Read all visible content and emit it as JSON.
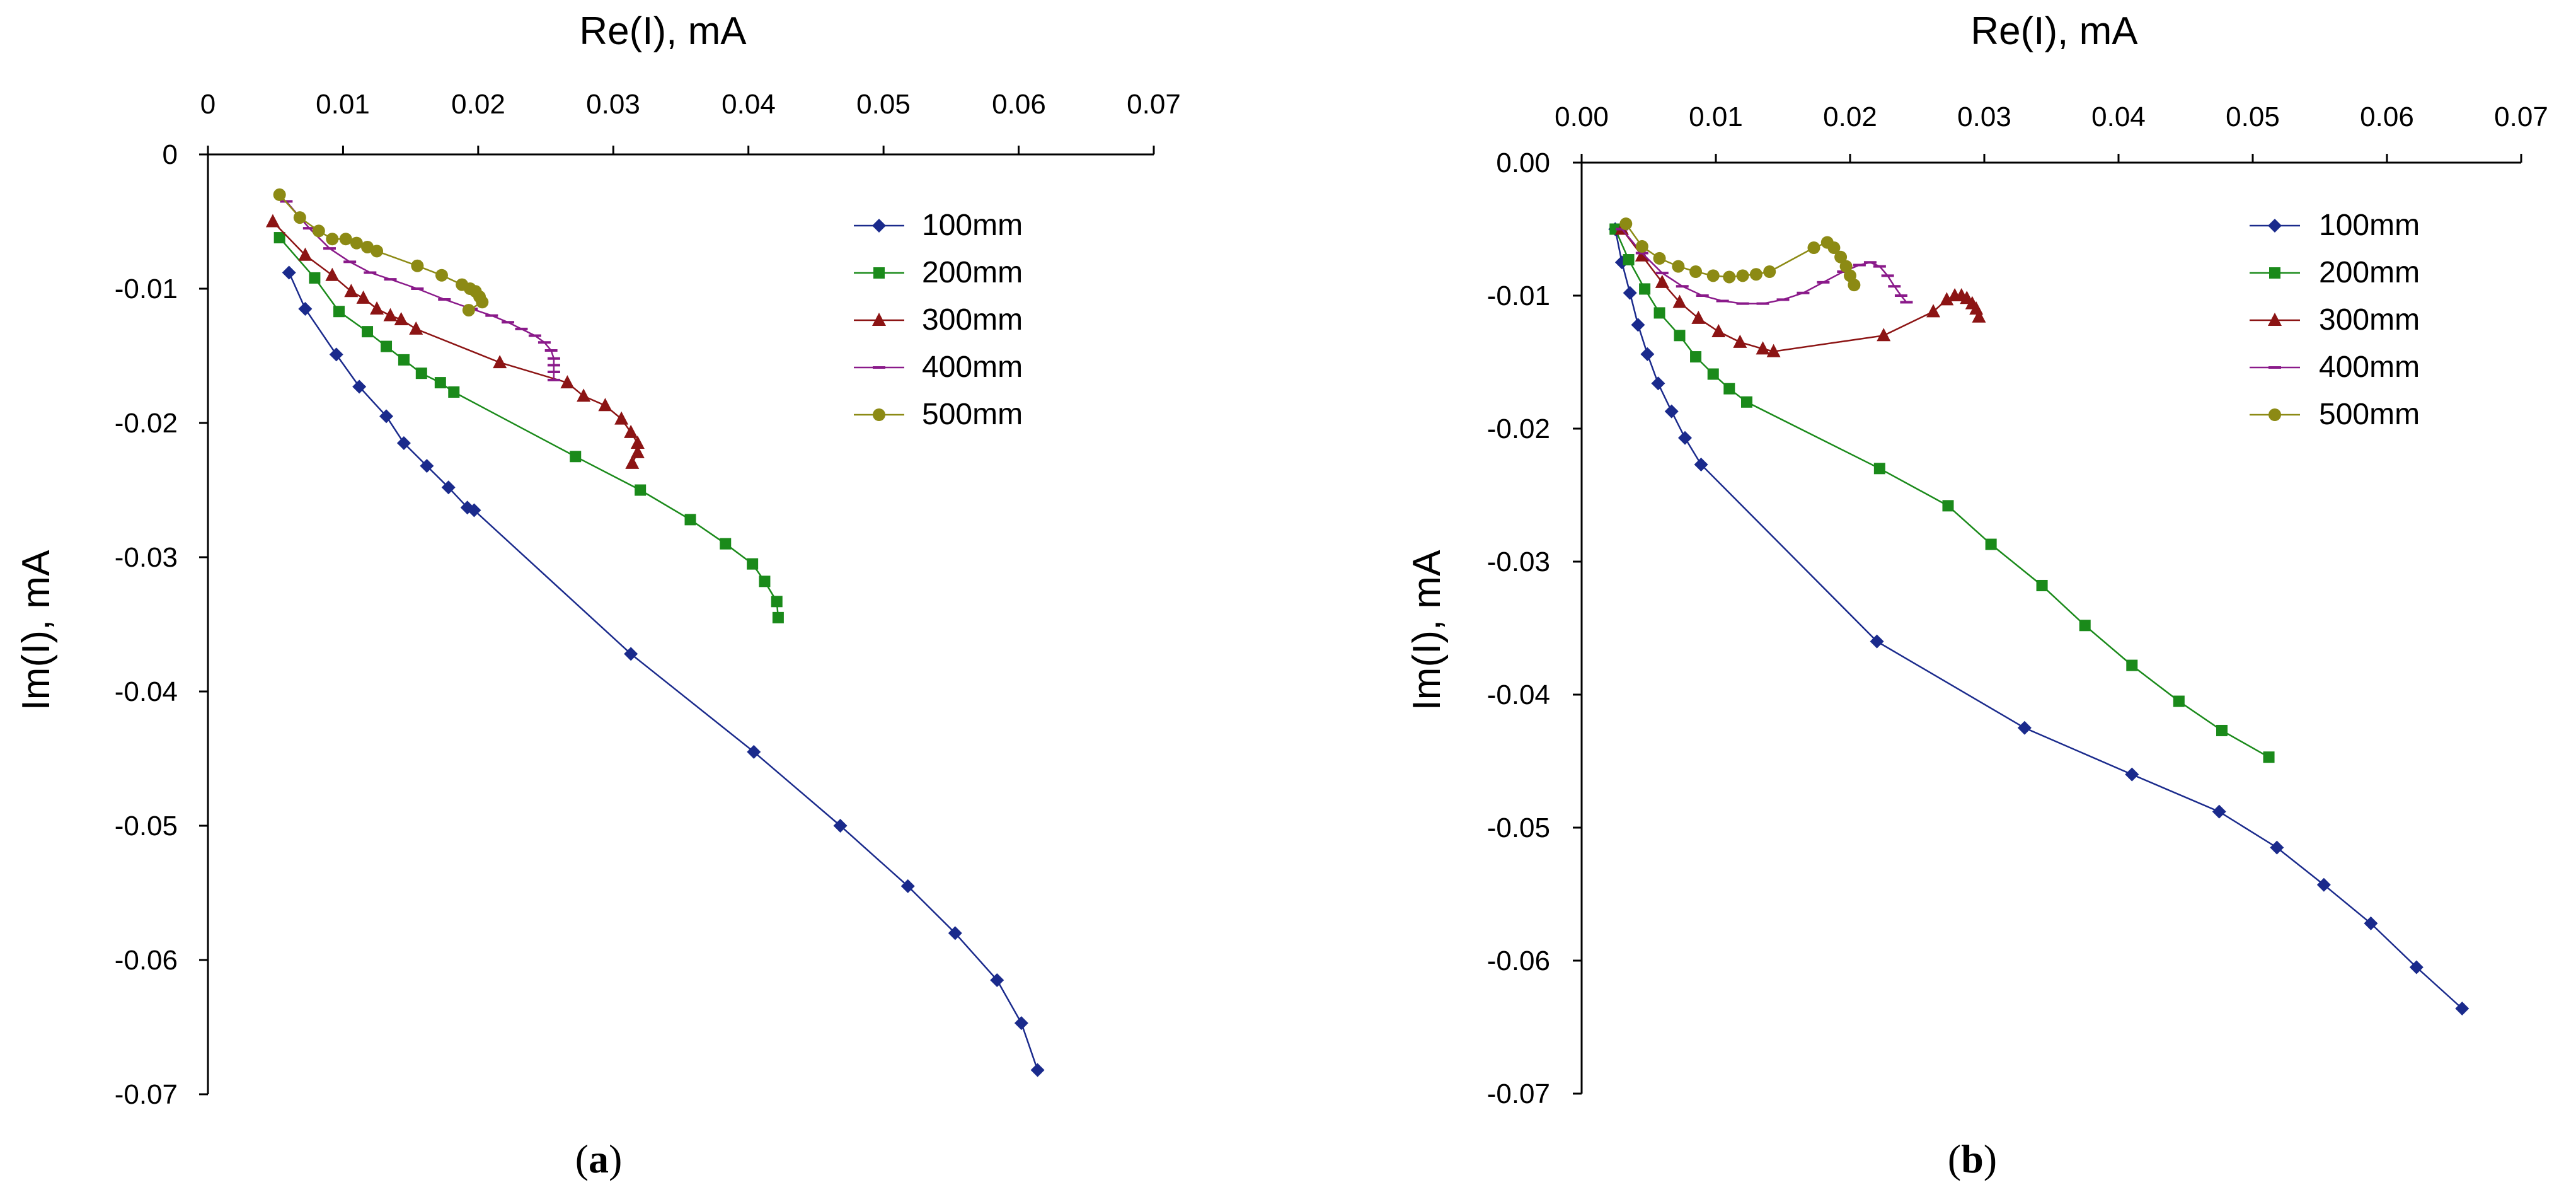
{
  "colors": {
    "100mm": "#1a2a8c",
    "200mm": "#1a8a1a",
    "300mm": "#8c1414",
    "400mm": "#8a1a8a",
    "500mm": "#8c8a14",
    "axis": "#000000"
  },
  "chart_data": [
    {
      "id": "a",
      "type": "line",
      "caption": {
        "open": "(",
        "letter": "a",
        "close": ")"
      },
      "xlabel": "Re(I), mA",
      "ylabel": "Im(I), mA",
      "xlim": [
        0,
        0.07
      ],
      "ylim": [
        -0.07,
        0
      ],
      "xticks": [
        "0",
        "0.01",
        "0.02",
        "0.03",
        "0.04",
        "0.05",
        "0.06",
        "0.07"
      ],
      "yticks": [
        "0",
        "-0.01",
        "-0.02",
        "-0.03",
        "-0.04",
        "-0.05",
        "-0.06",
        "-0.07"
      ],
      "legend_position": "top-right",
      "series": [
        {
          "name": "100mm",
          "marker": "diamond",
          "x": [
            0.006,
            0.0072,
            0.0095,
            0.0112,
            0.0132,
            0.0145,
            0.0162,
            0.0178,
            0.0192,
            0.0197,
            0.0313,
            0.0404,
            0.0468,
            0.0518,
            0.0553,
            0.0584,
            0.0602,
            0.0614
          ],
          "y": [
            -0.0088,
            -0.0115,
            -0.0149,
            -0.0173,
            -0.0195,
            -0.0215,
            -0.0232,
            -0.0248,
            -0.0263,
            -0.0265,
            -0.0372,
            -0.0445,
            -0.05,
            -0.0545,
            -0.058,
            -0.0615,
            -0.0647,
            -0.0682
          ]
        },
        {
          "name": "200mm",
          "marker": "square",
          "x": [
            0.0053,
            0.0079,
            0.0097,
            0.0118,
            0.0132,
            0.0145,
            0.0158,
            0.0172,
            0.0182,
            0.0272,
            0.032,
            0.0357,
            0.0383,
            0.0403,
            0.0412,
            0.0421,
            0.0422
          ],
          "y": [
            -0.0062,
            -0.0092,
            -0.0117,
            -0.0132,
            -0.0143,
            -0.0153,
            -0.0163,
            -0.017,
            -0.0177,
            -0.0225,
            -0.025,
            -0.0272,
            -0.029,
            -0.0305,
            -0.0318,
            -0.0333,
            -0.0345
          ],
          "line_x": [
            0.0053,
            0.0079,
            0.0097,
            0.0118,
            0.0132,
            0.0145,
            0.0158,
            0.0172,
            0.0182,
            0.0272,
            0.032,
            0.0357,
            0.0383,
            0.0403,
            0.0412,
            0.0421,
            0.0422
          ],
          "line_y": [
            -0.0062,
            -0.0092,
            -0.0117,
            -0.0132,
            -0.0143,
            -0.0153,
            -0.0163,
            -0.017,
            -0.0177,
            -0.0225,
            -0.025,
            -0.0272,
            -0.029,
            -0.0305,
            -0.0318,
            -0.0333,
            -0.0345
          ]
        },
        {
          "name": "300mm",
          "marker": "triangle",
          "x": [
            0.0048,
            0.0072,
            0.0092,
            0.0106,
            0.0115,
            0.0125,
            0.0135,
            0.0143,
            0.0154,
            0.0216,
            0.0266,
            0.0278,
            0.0294,
            0.0306,
            0.0313,
            0.0318,
            0.0318,
            0.0314
          ],
          "y": [
            -0.005,
            -0.0075,
            -0.009,
            -0.0102,
            -0.0107,
            -0.0115,
            -0.012,
            -0.0123,
            -0.013,
            -0.0155,
            -0.017,
            -0.018,
            -0.0187,
            -0.0197,
            -0.0207,
            -0.0215,
            -0.0222,
            -0.023
          ]
        },
        {
          "name": "400mm",
          "marker": "dash",
          "x": [
            0.0058,
            0.0075,
            0.009,
            0.0105,
            0.012,
            0.0135,
            0.0155,
            0.0175,
            0.0195,
            0.021,
            0.0222,
            0.0232,
            0.0242,
            0.0249,
            0.0254,
            0.0256,
            0.0256,
            0.0256,
            0.0256
          ],
          "y": [
            -0.0035,
            -0.0055,
            -0.007,
            -0.008,
            -0.0088,
            -0.0093,
            -0.01,
            -0.0108,
            -0.0115,
            -0.012,
            -0.0125,
            -0.013,
            -0.0135,
            -0.014,
            -0.0146,
            -0.0152,
            -0.0157,
            -0.0162,
            -0.0168
          ]
        },
        {
          "name": "500mm",
          "marker": "circle",
          "x": [
            0.0053,
            0.0068,
            0.0082,
            0.0092,
            0.0102,
            0.011,
            0.0118,
            0.0125,
            0.0155,
            0.0173,
            0.0188,
            0.0194,
            0.0198,
            0.0201,
            0.0203,
            0.0193
          ],
          "y": [
            -0.003,
            -0.0047,
            -0.0057,
            -0.0063,
            -0.0063,
            -0.0066,
            -0.0069,
            -0.0072,
            -0.0083,
            -0.009,
            -0.0097,
            -0.01,
            -0.0102,
            -0.0106,
            -0.011,
            -0.0116
          ]
        }
      ]
    },
    {
      "id": "b",
      "type": "line",
      "caption": {
        "open": "(",
        "letter": "b",
        "close": ")"
      },
      "xlabel": "Re(I), mA",
      "ylabel": "Im(I), mA",
      "xlim": [
        0,
        0.07
      ],
      "ylim": [
        -0.07,
        0
      ],
      "xticks": [
        "0.00",
        "0.01",
        "0.02",
        "0.03",
        "0.04",
        "0.05",
        "0.06",
        "0.07"
      ],
      "yticks": [
        "0.00",
        "-0.01",
        "-0.02",
        "-0.03",
        "-0.04",
        "-0.05",
        "-0.06",
        "-0.07"
      ],
      "legend_position": "top-right",
      "series": [
        {
          "name": "100mm",
          "marker": "diamond",
          "x": [
            0.0025,
            0.003,
            0.0036,
            0.0042,
            0.0049,
            0.0057,
            0.0067,
            0.0077,
            0.0089,
            0.022,
            0.033,
            0.041,
            0.0475,
            0.0518,
            0.0553,
            0.0588,
            0.0622,
            0.0656
          ],
          "y": [
            -0.005,
            -0.0075,
            -0.0098,
            -0.0122,
            -0.0144,
            -0.0166,
            -0.0187,
            -0.0207,
            -0.0227,
            -0.036,
            -0.0425,
            -0.046,
            -0.0488,
            -0.0515,
            -0.0543,
            -0.0572,
            -0.0605,
            -0.0636
          ]
        },
        {
          "name": "200mm",
          "marker": "square",
          "x": [
            0.0025,
            0.0035,
            0.0047,
            0.0058,
            0.0073,
            0.0085,
            0.0098,
            0.011,
            0.0123,
            0.0222,
            0.0273,
            0.0305,
            0.0343,
            0.0375,
            0.041,
            0.0445,
            0.0477,
            0.0512
          ],
          "y": [
            -0.005,
            -0.0073,
            -0.0095,
            -0.0113,
            -0.013,
            -0.0146,
            -0.0159,
            -0.017,
            -0.018,
            -0.023,
            -0.0258,
            -0.0287,
            -0.0318,
            -0.0348,
            -0.0378,
            -0.0405,
            -0.0427,
            -0.0447
          ]
        },
        {
          "name": "300mm",
          "marker": "triangle",
          "x": [
            0.003,
            0.0045,
            0.006,
            0.0073,
            0.0087,
            0.0102,
            0.0118,
            0.0135,
            0.0143,
            0.0225,
            0.0262,
            0.0272,
            0.0278,
            0.0283,
            0.0287,
            0.0291,
            0.0294,
            0.0296
          ],
          "y": [
            -0.005,
            -0.007,
            -0.009,
            -0.0105,
            -0.0117,
            -0.0127,
            -0.0135,
            -0.014,
            -0.0142,
            -0.013,
            -0.0112,
            -0.0103,
            -0.01,
            -0.01,
            -0.0102,
            -0.0106,
            -0.011,
            -0.0116
          ]
        },
        {
          "name": "400mm",
          "marker": "dash",
          "x": [
            0.003,
            0.0045,
            0.006,
            0.0075,
            0.009,
            0.0105,
            0.012,
            0.0135,
            0.015,
            0.0165,
            0.018,
            0.0195,
            0.0207,
            0.0215,
            0.0222,
            0.0228,
            0.0233,
            0.0238,
            0.0242
          ],
          "y": [
            -0.005,
            -0.0068,
            -0.0083,
            -0.0093,
            -0.01,
            -0.0104,
            -0.0106,
            -0.0106,
            -0.0103,
            -0.0098,
            -0.009,
            -0.0082,
            -0.0077,
            -0.0075,
            -0.0078,
            -0.0085,
            -0.0093,
            -0.01,
            -0.0105
          ]
        },
        {
          "name": "500mm",
          "marker": "circle",
          "x": [
            0.0033,
            0.0045,
            0.0058,
            0.0072,
            0.0085,
            0.0098,
            0.011,
            0.012,
            0.013,
            0.014,
            0.0173,
            0.0183,
            0.0188,
            0.0193,
            0.0197,
            0.02,
            0.0203
          ],
          "y": [
            -0.0046,
            -0.0063,
            -0.0072,
            -0.0078,
            -0.0082,
            -0.0085,
            -0.0086,
            -0.0085,
            -0.0084,
            -0.0082,
            -0.0064,
            -0.006,
            -0.0064,
            -0.0071,
            -0.0078,
            -0.0085,
            -0.0092
          ]
        }
      ]
    }
  ]
}
